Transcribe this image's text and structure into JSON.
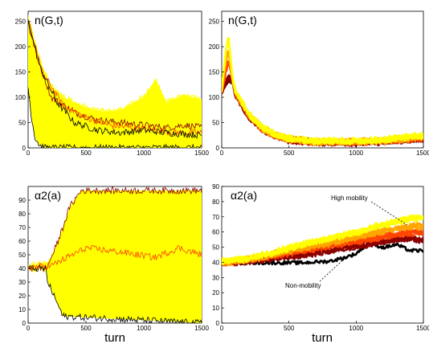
{
  "chart_data": [
    {
      "type": "line",
      "panel": "top-left",
      "title": "n(G,t)",
      "xlabel": "",
      "ylabel": "",
      "xlim": [
        0,
        1500
      ],
      "ylim": [
        0,
        270
      ],
      "xticks": [
        0,
        500,
        1000,
        1500
      ],
      "yticks": [
        0,
        50,
        100,
        150,
        200,
        250
      ],
      "grid": false,
      "series": [
        {
          "color": "#ffff00",
          "values": [
            [
              0,
              260
            ],
            [
              100,
              170
            ],
            [
              200,
              110
            ],
            [
              300,
              70
            ],
            [
              500,
              40
            ],
            [
              700,
              25
            ],
            [
              900,
              30
            ],
            [
              1100,
              20
            ],
            [
              1300,
              15
            ],
            [
              1500,
              20
            ]
          ]
        },
        {
          "color": "#ffff00",
          "values": [
            [
              0,
              220
            ],
            [
              150,
              60
            ],
            [
              300,
              20
            ],
            [
              500,
              5
            ],
            [
              1500,
              0
            ]
          ]
        },
        {
          "color": "#ffff00",
          "values": [
            [
              0,
              240
            ],
            [
              100,
              150
            ],
            [
              300,
              100
            ],
            [
              600,
              70
            ],
            [
              800,
              75
            ],
            [
              1000,
              100
            ],
            [
              1100,
              135
            ],
            [
              1200,
              90
            ],
            [
              1350,
              105
            ],
            [
              1500,
              95
            ]
          ]
        },
        {
          "color": "#ffff00",
          "values": [
            [
              0,
              230
            ],
            [
              200,
              120
            ],
            [
              400,
              80
            ],
            [
              700,
              70
            ],
            [
              900,
              60
            ],
            [
              1100,
              80
            ],
            [
              1300,
              70
            ],
            [
              1500,
              60
            ]
          ]
        },
        {
          "color": "#8b0000",
          "values": [
            [
              0,
              255
            ],
            [
              100,
              165
            ],
            [
              200,
              100
            ],
            [
              400,
              70
            ],
            [
              600,
              55
            ],
            [
              800,
              50
            ],
            [
              1000,
              45
            ],
            [
              1200,
              40
            ],
            [
              1350,
              45
            ],
            [
              1500,
              40
            ]
          ]
        },
        {
          "color": "#ff4500",
          "values": [
            [
              0,
              245
            ],
            [
              120,
              150
            ],
            [
              300,
              85
            ],
            [
              500,
              60
            ],
            [
              700,
              45
            ],
            [
              900,
              40
            ],
            [
              1100,
              35
            ],
            [
              1300,
              30
            ],
            [
              1500,
              30
            ]
          ]
        },
        {
          "color": "#000000",
          "values": [
            [
              0,
              250
            ],
            [
              100,
              160
            ],
            [
              250,
              90
            ],
            [
              400,
              50
            ],
            [
              600,
              35
            ],
            [
              800,
              30
            ],
            [
              1000,
              35
            ],
            [
              1200,
              30
            ],
            [
              1500,
              25
            ]
          ]
        },
        {
          "color": "#000000",
          "values": [
            [
              0,
              120
            ],
            [
              30,
              60
            ],
            [
              60,
              20
            ],
            [
              100,
              5
            ],
            [
              150,
              0
            ]
          ]
        }
      ]
    },
    {
      "type": "line",
      "panel": "top-right",
      "title": "n(G,t)",
      "xlabel": "",
      "ylabel": "",
      "xlim": [
        0,
        1500
      ],
      "ylim": [
        0,
        270
      ],
      "xticks": [
        0,
        500,
        1000,
        1500
      ],
      "yticks": [
        0,
        50,
        100,
        150,
        200,
        250
      ],
      "grid": false,
      "series": [
        {
          "color": "#000000",
          "values": [
            [
              0,
              110
            ],
            [
              30,
              125
            ],
            [
              50,
              132
            ],
            [
              80,
              130
            ],
            [
              100,
              105
            ],
            [
              200,
              60
            ],
            [
              300,
              35
            ],
            [
              400,
              22
            ],
            [
              500,
              15
            ],
            [
              700,
              11
            ],
            [
              1000,
              10
            ],
            [
              1200,
              12
            ],
            [
              1400,
              15
            ],
            [
              1500,
              17
            ]
          ]
        },
        {
          "color": "#8b0000",
          "values": [
            [
              0,
              110
            ],
            [
              30,
              130
            ],
            [
              50,
              140
            ],
            [
              80,
              132
            ],
            [
              100,
              108
            ],
            [
              200,
              62
            ],
            [
              300,
              37
            ],
            [
              400,
              24
            ],
            [
              500,
              16
            ],
            [
              700,
              12
            ],
            [
              1000,
              11
            ],
            [
              1200,
              13
            ],
            [
              1400,
              17
            ],
            [
              1500,
              18
            ]
          ]
        },
        {
          "color": "#ff4500",
          "values": [
            [
              0,
              112
            ],
            [
              30,
              150
            ],
            [
              50,
              175
            ],
            [
              80,
              135
            ],
            [
              100,
              110
            ],
            [
              200,
              64
            ],
            [
              300,
              38
            ],
            [
              400,
              25
            ],
            [
              500,
              17
            ],
            [
              700,
              12
            ],
            [
              1000,
              12
            ],
            [
              1200,
              14
            ],
            [
              1400,
              18
            ],
            [
              1500,
              20
            ]
          ]
        },
        {
          "color": "#ffa500",
          "values": [
            [
              0,
              114
            ],
            [
              30,
              170
            ],
            [
              50,
              195
            ],
            [
              80,
              137
            ],
            [
              100,
              112
            ],
            [
              200,
              66
            ],
            [
              300,
              40
            ],
            [
              400,
              26
            ],
            [
              500,
              18
            ],
            [
              700,
              13
            ],
            [
              1000,
              13
            ],
            [
              1200,
              15
            ],
            [
              1400,
              20
            ],
            [
              1500,
              22
            ]
          ]
        },
        {
          "color": "#ffff00",
          "values": [
            [
              0,
              115
            ],
            [
              30,
              190
            ],
            [
              50,
              218
            ],
            [
              80,
              140
            ],
            [
              100,
              115
            ],
            [
              200,
              68
            ],
            [
              300,
              42
            ],
            [
              400,
              27
            ],
            [
              500,
              19
            ],
            [
              700,
              14
            ],
            [
              1000,
              14
            ],
            [
              1200,
              17
            ],
            [
              1400,
              23
            ],
            [
              1500,
              24
            ]
          ]
        }
      ]
    },
    {
      "type": "line",
      "panel": "bottom-left",
      "title": "α2(a)",
      "xlabel": "turn",
      "ylabel": "",
      "xlim": [
        0,
        1500
      ],
      "ylim": [
        0,
        100
      ],
      "xticks": [
        0,
        500,
        1000,
        1500
      ],
      "yticks": [
        0,
        10,
        20,
        30,
        40,
        50,
        60,
        70,
        80,
        90
      ],
      "grid": false,
      "series": [
        {
          "color": "#ffff00",
          "values": [
            [
              0,
              40
            ],
            [
              150,
              40
            ],
            [
              250,
              55
            ],
            [
              350,
              75
            ],
            [
              450,
              95
            ],
            [
              1500,
              95
            ]
          ]
        },
        {
          "color": "#ffff00",
          "values": [
            [
              0,
              40
            ],
            [
              150,
              40
            ],
            [
              300,
              30
            ],
            [
              500,
              25
            ],
            [
              800,
              30
            ],
            [
              1100,
              35
            ],
            [
              1300,
              28
            ],
            [
              1500,
              30
            ]
          ]
        },
        {
          "color": "#ffff00",
          "values": [
            [
              0,
              42
            ],
            [
              200,
              45
            ],
            [
              400,
              55
            ],
            [
              700,
              60
            ],
            [
              1000,
              58
            ],
            [
              1200,
              62
            ],
            [
              1500,
              60
            ]
          ]
        },
        {
          "color": "#8b0000",
          "values": [
            [
              0,
              40
            ],
            [
              160,
              40
            ],
            [
              260,
              60
            ],
            [
              360,
              85
            ],
            [
              460,
              97
            ],
            [
              1500,
              97
            ]
          ]
        },
        {
          "color": "#000000",
          "values": [
            [
              0,
              40
            ],
            [
              150,
              40
            ],
            [
              170,
              30
            ],
            [
              250,
              15
            ],
            [
              300,
              5
            ],
            [
              1500,
              0
            ]
          ]
        },
        {
          "color": "#ff4500",
          "values": [
            [
              0,
              41
            ],
            [
              200,
              42
            ],
            [
              500,
              55
            ],
            [
              800,
              52
            ],
            [
              1100,
              48
            ],
            [
              1300,
              55
            ],
            [
              1500,
              50
            ]
          ]
        }
      ]
    },
    {
      "type": "line",
      "panel": "bottom-right",
      "title": "α2(a)",
      "xlabel": "turn",
      "ylabel": "",
      "xlim": [
        0,
        1500
      ],
      "ylim": [
        0,
        90
      ],
      "xticks": [
        0,
        500,
        1000,
        1500
      ],
      "yticks": [
        0,
        10,
        20,
        30,
        40,
        50,
        60,
        70,
        80,
        90
      ],
      "grid": false,
      "annotations": [
        "High mobility",
        "Non-mobility"
      ],
      "series": [
        {
          "color": "#000000",
          "values": [
            [
              0,
              40
            ],
            [
              200,
              40
            ],
            [
              400,
              40
            ],
            [
              600,
              40
            ],
            [
              700,
              40.5
            ],
            [
              800,
              41
            ],
            [
              900,
              43
            ],
            [
              1000,
              46
            ],
            [
              1050,
              50
            ],
            [
              1100,
              53
            ],
            [
              1200,
              50
            ],
            [
              1300,
              52
            ],
            [
              1400,
              48
            ],
            [
              1500,
              48
            ]
          ]
        },
        {
          "color": "#8b0000",
          "values": [
            [
              0,
              40
            ],
            [
              200,
              41
            ],
            [
              400,
              43
            ],
            [
              600,
              45
            ],
            [
              800,
              48
            ],
            [
              1000,
              51
            ],
            [
              1200,
              54
            ],
            [
              1400,
              56
            ],
            [
              1500,
              55
            ]
          ]
        },
        {
          "color": "#ff4500",
          "values": [
            [
              0,
              40
            ],
            [
              200,
              42
            ],
            [
              400,
              45
            ],
            [
              600,
              48
            ],
            [
              800,
              51
            ],
            [
              1000,
              54
            ],
            [
              1200,
              57
            ],
            [
              1400,
              60
            ],
            [
              1500,
              60
            ]
          ]
        },
        {
          "color": "#ffa500",
          "values": [
            [
              0,
              40
            ],
            [
              200,
              42
            ],
            [
              400,
              46
            ],
            [
              600,
              50
            ],
            [
              800,
              53
            ],
            [
              1000,
              57
            ],
            [
              1200,
              61
            ],
            [
              1400,
              64
            ],
            [
              1500,
              64
            ]
          ]
        },
        {
          "color": "#ffff00",
          "values": [
            [
              0,
              41
            ],
            [
              200,
              43
            ],
            [
              400,
              47
            ],
            [
              600,
              52
            ],
            [
              800,
              56
            ],
            [
              1000,
              60
            ],
            [
              1200,
              65
            ],
            [
              1400,
              69
            ],
            [
              1500,
              70
            ]
          ]
        }
      ]
    }
  ],
  "colors": {
    "yellow": "#ffff00",
    "orange": "#ffa500",
    "red_orange": "#ff4500",
    "dark_red": "#8b0000",
    "black": "#000000"
  }
}
